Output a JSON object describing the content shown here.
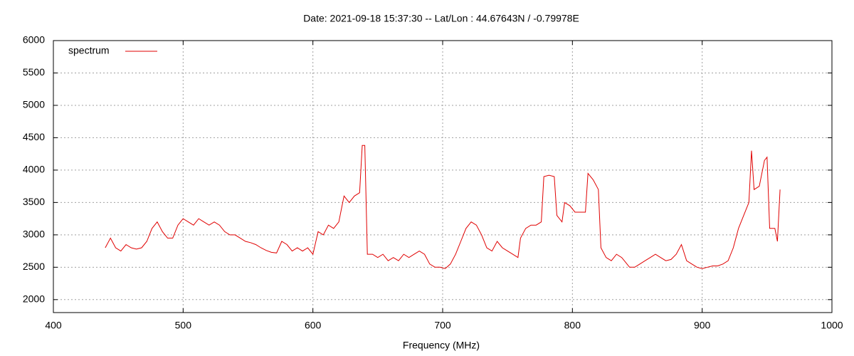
{
  "chart_data": {
    "type": "line",
    "title": "Date: 2021-09-18 15:37:30  --  Lat/Lon : 44.67643N / -0.79978E",
    "x_label": "Frequency (MHz)",
    "xlim": [
      400,
      1000
    ],
    "xticks": [
      400,
      500,
      600,
      700,
      800,
      900,
      1000
    ],
    "ylim": [
      1800,
      6000
    ],
    "yticks": [
      2000,
      2500,
      3000,
      3500,
      4000,
      4500,
      5000,
      5500,
      6000
    ],
    "grid": true,
    "legend": "top-left",
    "series": [
      {
        "name": "spectrum",
        "color": "#e00000",
        "x": [
          440,
          444,
          448,
          452,
          456,
          460,
          464,
          468,
          472,
          476,
          480,
          484,
          488,
          492,
          496,
          500,
          504,
          508,
          512,
          516,
          520,
          524,
          528,
          532,
          536,
          540,
          544,
          548,
          552,
          556,
          560,
          564,
          568,
          572,
          576,
          580,
          584,
          588,
          592,
          596,
          600,
          604,
          608,
          612,
          616,
          620,
          624,
          628,
          632,
          636,
          638,
          640,
          642,
          646,
          650,
          654,
          658,
          662,
          666,
          670,
          674,
          678,
          682,
          686,
          690,
          694,
          698,
          702,
          706,
          710,
          714,
          718,
          722,
          726,
          730,
          734,
          738,
          742,
          746,
          750,
          754,
          758,
          760,
          764,
          768,
          772,
          776,
          778,
          782,
          786,
          788,
          792,
          794,
          798,
          802,
          806,
          810,
          812,
          816,
          820,
          822,
          826,
          830,
          834,
          838,
          840,
          844,
          848,
          852,
          856,
          860,
          864,
          868,
          872,
          876,
          880,
          884,
          888,
          892,
          896,
          900,
          904,
          908,
          912,
          916,
          920,
          924,
          928,
          932,
          936,
          938,
          940,
          944,
          948,
          950,
          952,
          956,
          958,
          960
        ],
        "values": [
          2800,
          2950,
          2800,
          2750,
          2850,
          2800,
          2780,
          2800,
          2900,
          3100,
          3200,
          3050,
          2950,
          2950,
          3150,
          3250,
          3200,
          3150,
          3250,
          3200,
          3150,
          3200,
          3150,
          3050,
          3000,
          3000,
          2950,
          2900,
          2880,
          2850,
          2800,
          2760,
          2730,
          2720,
          2900,
          2850,
          2750,
          2800,
          2750,
          2800,
          2700,
          3050,
          3000,
          3150,
          3100,
          3200,
          3600,
          3500,
          3600,
          3650,
          4380,
          4380,
          2700,
          2700,
          2650,
          2700,
          2600,
          2650,
          2600,
          2700,
          2650,
          2700,
          2750,
          2700,
          2550,
          2500,
          2500,
          2480,
          2550,
          2700,
          2900,
          3100,
          3200,
          3150,
          3000,
          2800,
          2750,
          2900,
          2800,
          2750,
          2700,
          2650,
          2950,
          3100,
          3150,
          3150,
          3200,
          3900,
          3920,
          3900,
          3300,
          3200,
          3500,
          3450,
          3350,
          3350,
          3350,
          3950,
          3850,
          3700,
          2800,
          2650,
          2600,
          2700,
          2650,
          2600,
          2500,
          2500,
          2550,
          2600,
          2650,
          2700,
          2650,
          2600,
          2620,
          2700,
          2850,
          2600,
          2550,
          2500,
          2480,
          2500,
          2520,
          2520,
          2550,
          2600,
          2800,
          3100,
          3300,
          3500,
          4300,
          3700,
          3750,
          4150,
          4200,
          3100,
          3100,
          2900,
          3700
        ]
      }
    ]
  }
}
